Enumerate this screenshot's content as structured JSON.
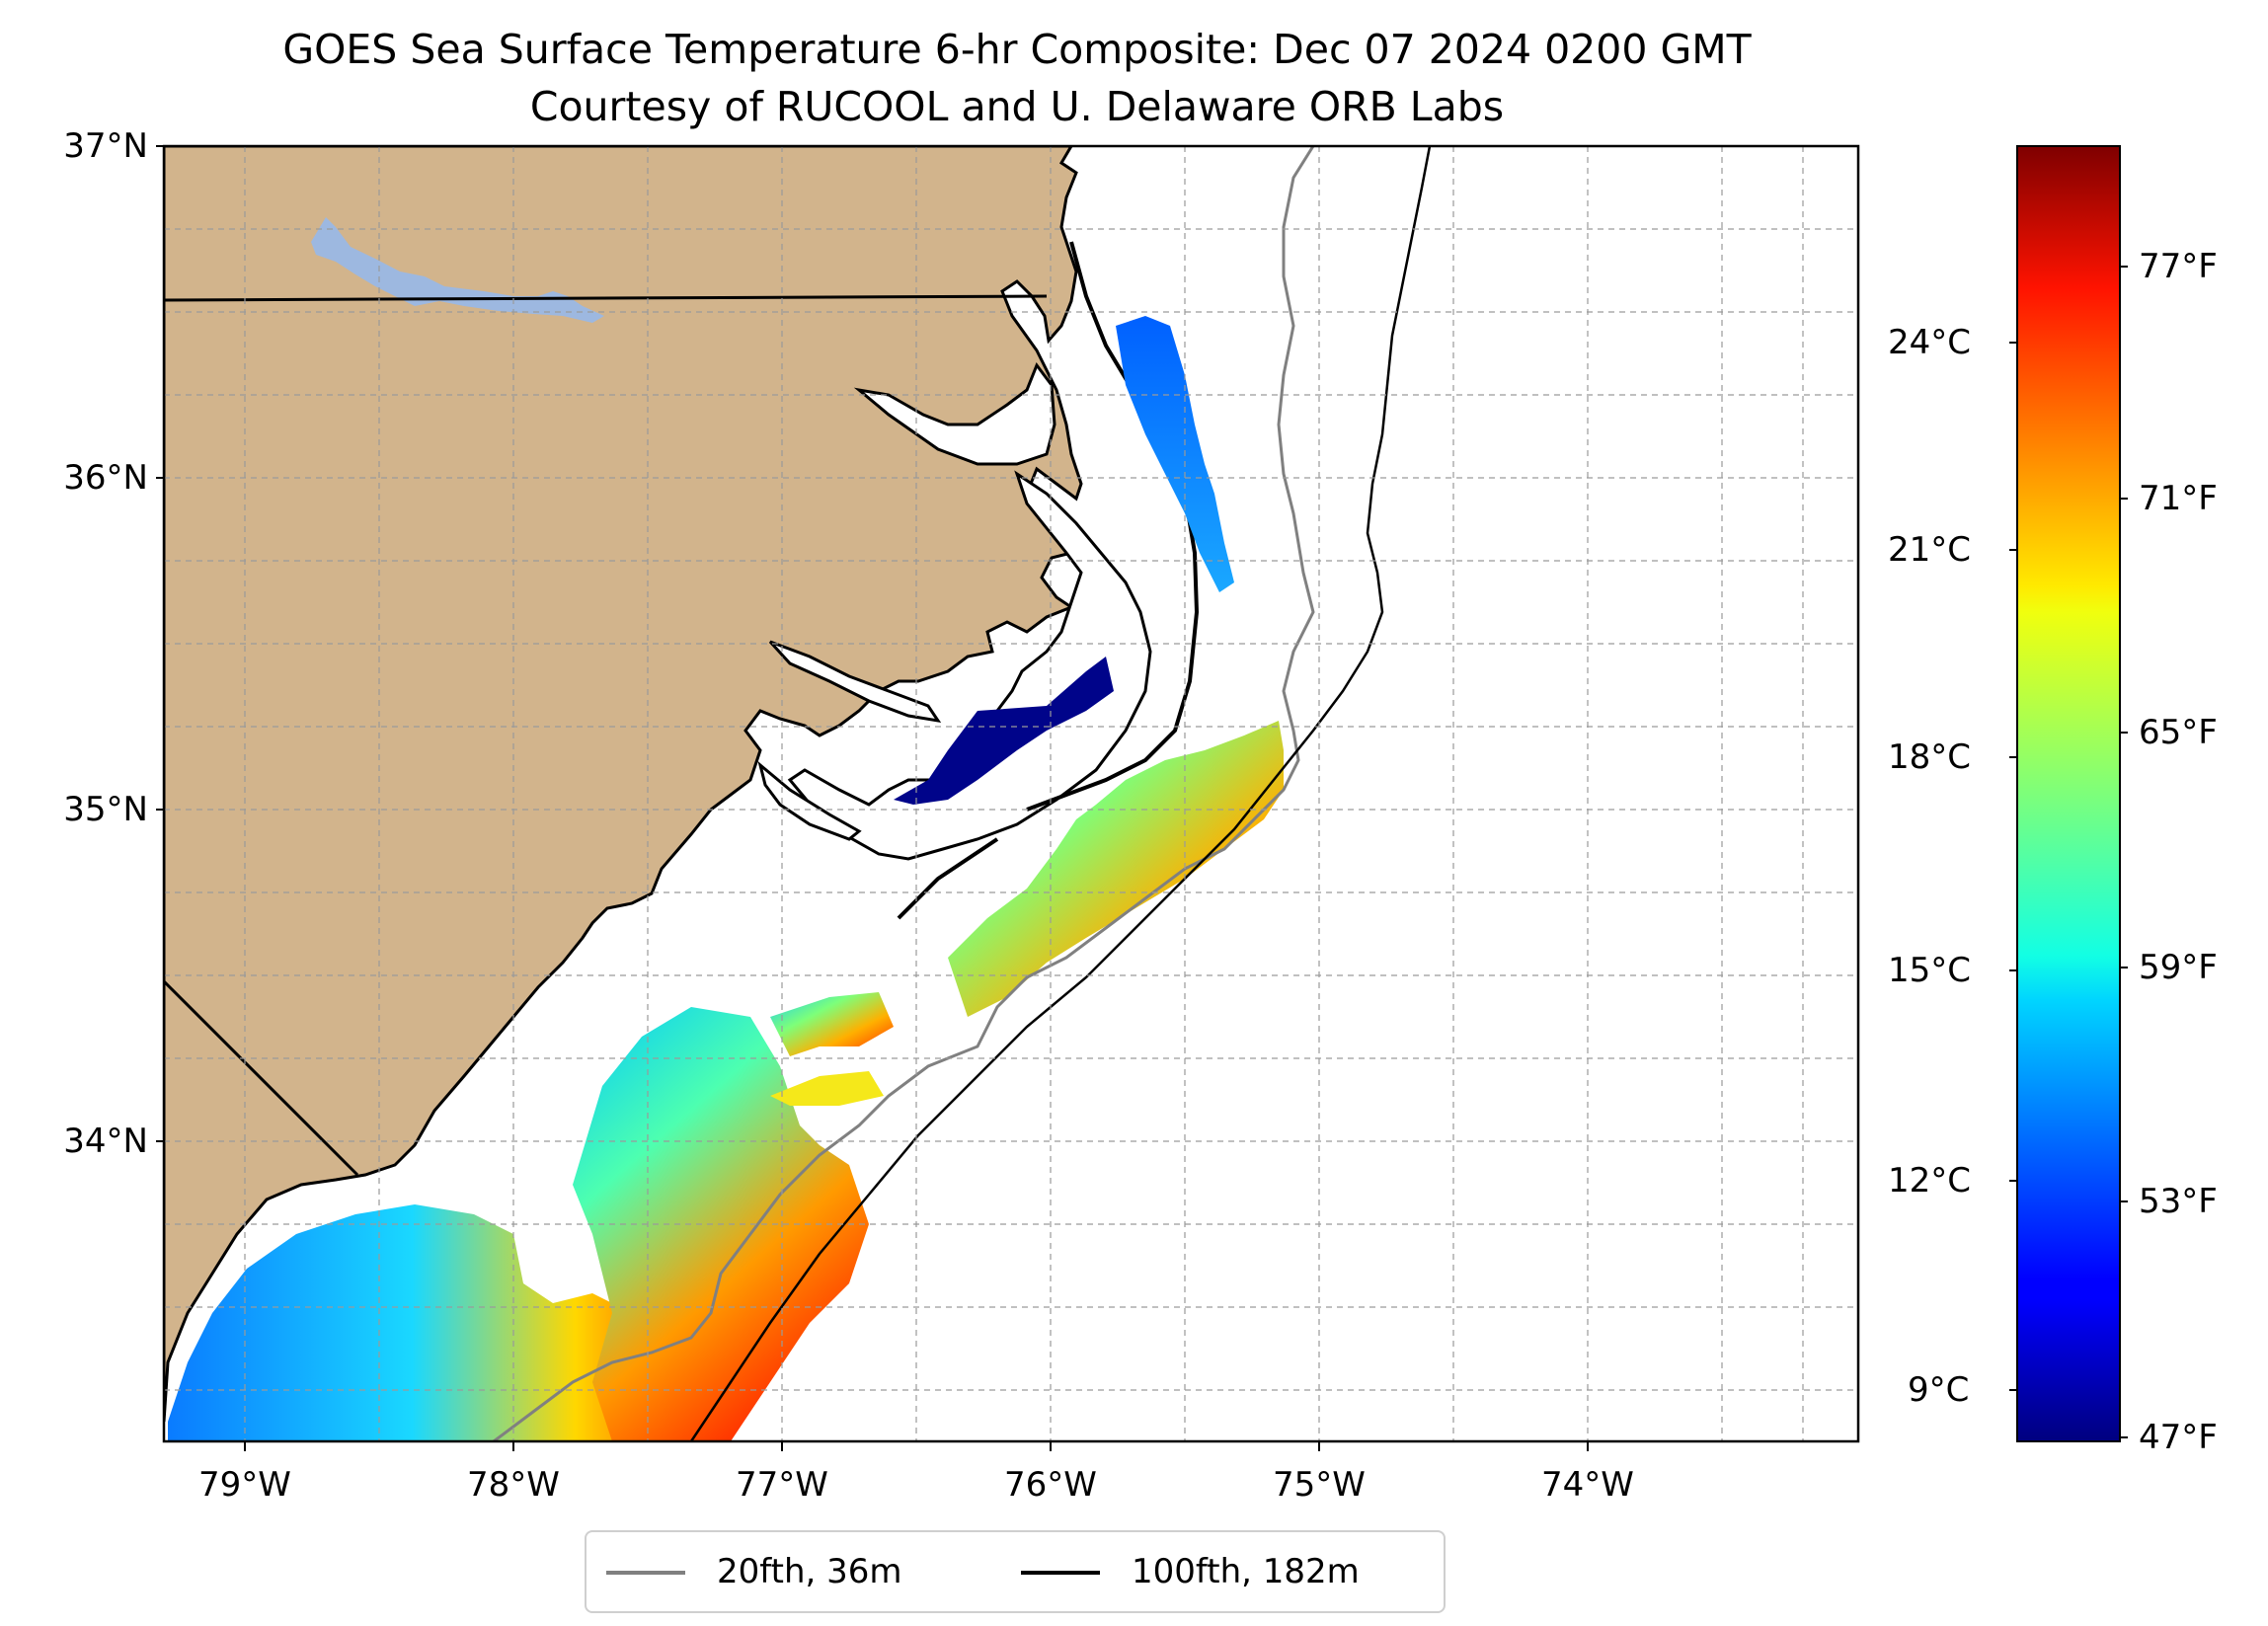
{
  "title": "GOES Sea Surface Temperature 6-hr Composite: Dec 07 2024 0200 GMT",
  "subtitle": "Courtesy of RUCOOL and U. Delaware ORB Labs",
  "map": {
    "extent": {
      "lon": [
        -79.3,
        -73.0
      ],
      "lat": [
        33.1,
        37.0
      ]
    },
    "lat_ticks": [
      "37°N",
      "36°N",
      "35°N",
      "34°N"
    ],
    "lon_ticks": [
      "79°W",
      "78°W",
      "77°W",
      "76°W",
      "75°W",
      "74°W"
    ],
    "gridlines": true,
    "land_color": "#d2b48c",
    "lake_color": "#9db8e0",
    "coast_color": "#000000"
  },
  "colorbar": {
    "colormap": "jet",
    "celsius_ticks": [
      "24°C",
      "21°C",
      "18°C",
      "15°C",
      "12°C",
      "9°C"
    ],
    "fahrenheit_ticks": [
      "77°F",
      "71°F",
      "65°F",
      "59°F",
      "53°F",
      "47°F"
    ],
    "range_f": [
      47,
      80
    ]
  },
  "legend": {
    "items": [
      {
        "label": "20fth, 36m",
        "color": "#808080"
      },
      {
        "label": "100fth, 182m",
        "color": "#000000"
      }
    ]
  }
}
